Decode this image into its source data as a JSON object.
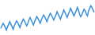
{
  "chart_data": {
    "type": "line",
    "categories": [
      null,
      null,
      null,
      null,
      null,
      null,
      null,
      null,
      null,
      null,
      null,
      null,
      null,
      null,
      null,
      null,
      null,
      null,
      null,
      null,
      null,
      null,
      null,
      null,
      null,
      null,
      null,
      null,
      null,
      null,
      null,
      null,
      null,
      null,
      null,
      null,
      null,
      null,
      null,
      null,
      null,
      null,
      null,
      null,
      null,
      null,
      null,
      null,
      null,
      null,
      null,
      null,
      null,
      null,
      null,
      null,
      null,
      null,
      null,
      null,
      null,
      null,
      null,
      null,
      null,
      null,
      null,
      null,
      null,
      null,
      null,
      null,
      null,
      null,
      null,
      null,
      null,
      null,
      null,
      null,
      null,
      null,
      null,
      null
    ],
    "values": [
      7,
      10,
      13,
      11,
      8,
      5,
      9,
      12,
      15,
      12,
      9,
      6,
      10,
      13,
      16,
      14,
      11,
      8,
      12,
      15,
      18,
      16,
      13,
      10,
      13,
      17,
      20,
      17,
      14,
      11,
      15,
      18,
      21,
      19,
      16,
      13,
      17,
      20,
      23,
      21,
      18,
      15,
      19,
      22,
      25,
      23,
      20,
      17,
      20,
      23,
      27,
      24,
      21,
      18,
      22,
      25,
      29,
      26,
      23,
      20,
      24,
      27,
      31,
      28,
      25,
      22,
      25,
      28,
      32,
      29,
      24,
      21,
      23,
      27,
      30,
      28,
      24,
      22,
      28,
      31,
      34,
      32,
      29,
      26
    ],
    "color": "#3a8fd9",
    "ylim": [
      0,
      40
    ],
    "yticks": [
      0,
      40
    ],
    "grid": false,
    "tick_labels": false
  }
}
